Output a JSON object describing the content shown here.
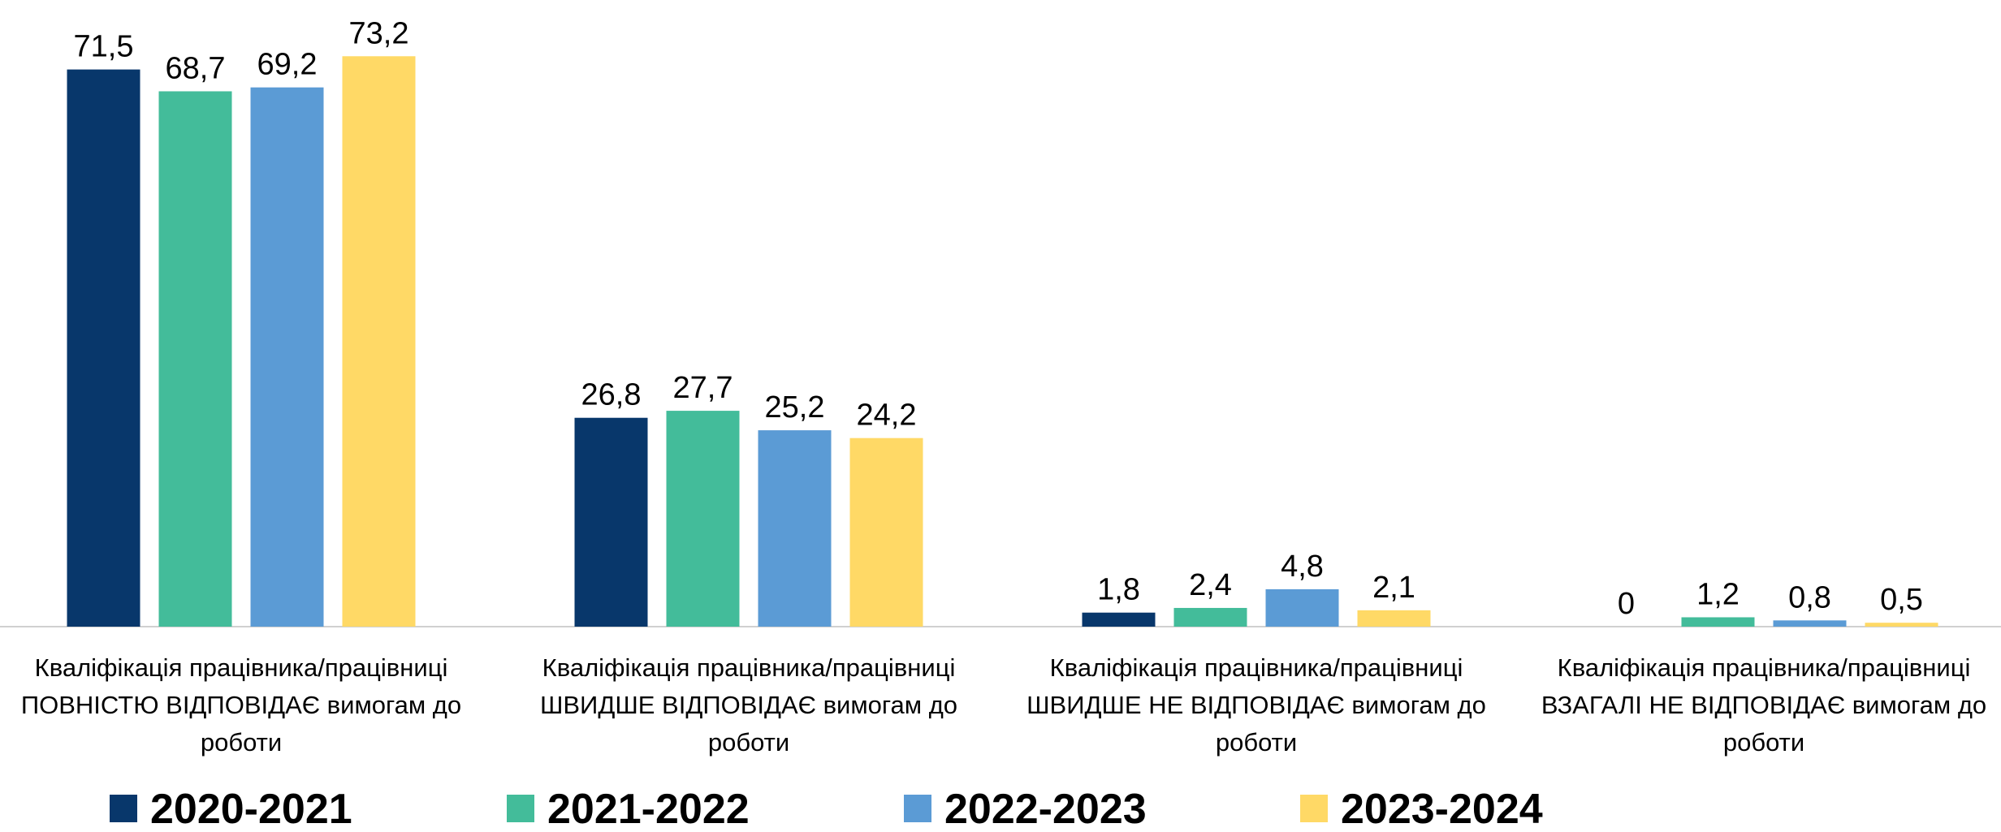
{
  "chart_data": {
    "type": "bar",
    "categories": [
      "Кваліфікація працівника/працівниці ПОВНІСТЮ ВІДПОВІДАЄ вимогам до роботи",
      "Кваліфікація працівника/працівниці ШВИДШЕ ВІДПОВІДАЄ вимогам до роботи",
      "Кваліфікація працівника/працівниці ШВИДШЕ НЕ ВІДПОВІДАЄ вимогам до роботи",
      "Кваліфікація працівника/працівниці ВЗАГАЛІ НЕ ВІДПОВІДАЄ вимогам до роботи"
    ],
    "series": [
      {
        "name": "2020-2021",
        "color": "#08376b",
        "values": [
          71.5,
          26.8,
          1.8,
          0
        ],
        "value_labels": [
          "71,5",
          "26,8",
          "1,8",
          "0"
        ]
      },
      {
        "name": "2021-2022",
        "color": "#43bc9a",
        "values": [
          68.7,
          27.7,
          2.4,
          1.2
        ],
        "value_labels": [
          "68,7",
          "27,7",
          "2,4",
          "1,2"
        ]
      },
      {
        "name": "2022-2023",
        "color": "#5b9bd5",
        "values": [
          69.2,
          25.2,
          4.8,
          0.8
        ],
        "value_labels": [
          "69,2",
          "25,2",
          "4,8",
          "0,8"
        ]
      },
      {
        "name": "2023-2024",
        "color": "#ffd966",
        "values": [
          73.2,
          24.2,
          2.1,
          0.5
        ],
        "value_labels": [
          "73,2",
          "24,2",
          "2,1",
          "0,5"
        ]
      }
    ],
    "ylim": [
      0,
      80
    ],
    "legend": "bottom"
  }
}
